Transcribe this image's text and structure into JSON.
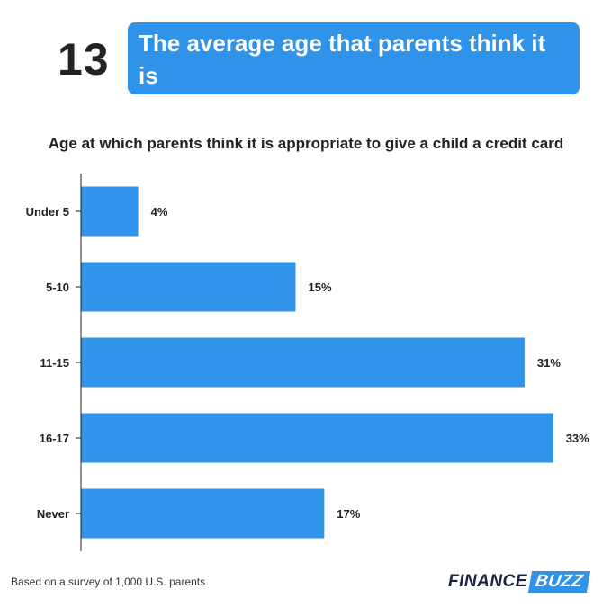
{
  "header": {
    "number": "13",
    "headline_line1": "The average age that parents think it is",
    "headline_line2": "appropriate to give a child a credit card"
  },
  "footer": {
    "note": "Based on a survey of 1,000 U.S. parents",
    "logo_part1": "FINANCE",
    "logo_part2": "BUZZ"
  },
  "colors": {
    "bar": "#2f93ea",
    "accent": "#2f93ea",
    "text": "#222222"
  },
  "chart_data": {
    "type": "bar",
    "orientation": "horizontal",
    "title": "Age at which parents think it is appropriate to give a child a credit card",
    "categories": [
      "Under 5",
      "5-10",
      "11-15",
      "16-17",
      "Never"
    ],
    "values": [
      4,
      15,
      31,
      33,
      17
    ],
    "value_labels": [
      "4%",
      "15%",
      "31%",
      "33%",
      "17%"
    ],
    "unit": "%",
    "xlim": [
      0,
      35
    ],
    "grid": false,
    "legend": "none"
  }
}
